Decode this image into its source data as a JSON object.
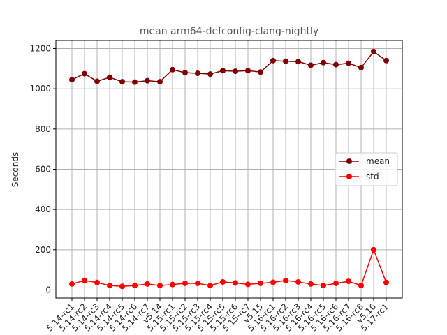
{
  "chart_data": {
    "type": "line",
    "title": "mean arm64-defconfig-clang-nightly",
    "xlabel": "",
    "ylabel": "Seconds",
    "categories": [
      "5.14-rc1",
      "5.14-rc2",
      "5.14-rc3",
      "5.14-rc4",
      "5.14-rc5",
      "5.14-rc6",
      "5.14-rc7",
      "v5.14",
      "5.15-rc1",
      "5.15-rc2",
      "5.15-rc3",
      "5.15-rc4",
      "5.15-rc5",
      "5.15-rc6",
      "5.15-rc7",
      "v5.15",
      "5.16-rc1",
      "5.16-rc2",
      "5.16-rc3",
      "5.16-rc4",
      "5.16-rc5",
      "5.16-rc6",
      "5.16-rc7",
      "5.16-rc8",
      "v5.16",
      "5.17-rc1"
    ],
    "ylim": [
      -40,
      1240
    ],
    "yticks": [
      0,
      200,
      400,
      600,
      800,
      1000,
      1200
    ],
    "grid": true,
    "legend_position": "center-right",
    "series": [
      {
        "name": "mean",
        "color": "#800000",
        "values": [
          1045,
          1075,
          1037,
          1057,
          1035,
          1033,
          1040,
          1035,
          1095,
          1080,
          1077,
          1073,
          1090,
          1087,
          1090,
          1083,
          1140,
          1137,
          1135,
          1117,
          1130,
          1120,
          1127,
          1105,
          1185,
          1140
        ]
      },
      {
        "name": "std",
        "color": "#ff0000",
        "values": [
          30,
          47,
          37,
          22,
          18,
          22,
          30,
          22,
          27,
          33,
          33,
          22,
          40,
          35,
          28,
          33,
          38,
          47,
          40,
          30,
          22,
          33,
          43,
          22,
          200,
          37
        ]
      }
    ]
  }
}
